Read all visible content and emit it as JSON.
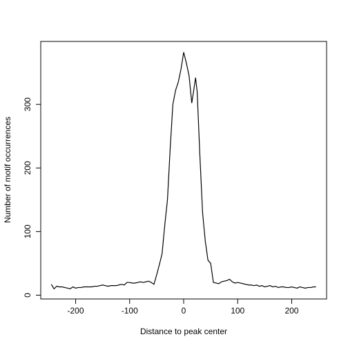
{
  "chart_data": {
    "type": "line",
    "xlabel": "Distance to peak center",
    "ylabel": "Number of motif occurrences",
    "x": [
      -245,
      -240,
      -235,
      -230,
      -225,
      -220,
      -215,
      -210,
      -205,
      -200,
      -195,
      -190,
      -185,
      -180,
      -175,
      -170,
      -165,
      -160,
      -155,
      -150,
      -145,
      -140,
      -135,
      -130,
      -125,
      -120,
      -115,
      -110,
      -105,
      -100,
      -95,
      -90,
      -85,
      -80,
      -75,
      -70,
      -65,
      -60,
      -55,
      -50,
      -45,
      -40,
      -35,
      -30,
      -25,
      -20,
      -15,
      -10,
      -5,
      0,
      5,
      10,
      15,
      20,
      22,
      25,
      30,
      35,
      40,
      45,
      50,
      55,
      60,
      65,
      70,
      75,
      80,
      85,
      90,
      95,
      100,
      105,
      110,
      115,
      120,
      125,
      130,
      135,
      140,
      145,
      150,
      155,
      160,
      165,
      170,
      175,
      180,
      185,
      190,
      195,
      200,
      205,
      210,
      215,
      220,
      225,
      230,
      235,
      240,
      245
    ],
    "series": [
      {
        "color": "#000000",
        "values": [
          17,
          10,
          14,
          13,
          13,
          12,
          11,
          10,
          13,
          11,
          12,
          12,
          13,
          13,
          13,
          13,
          14,
          14,
          15,
          16,
          15,
          14,
          15,
          15,
          15,
          16,
          17,
          16,
          20,
          20,
          19,
          19,
          20,
          21,
          20,
          21,
          22,
          20,
          17,
          32,
          48,
          65,
          110,
          150,
          230,
          300,
          322,
          335,
          355,
          382,
          365,
          345,
          302,
          330,
          342,
          320,
          220,
          130,
          85,
          55,
          50,
          20,
          19,
          18,
          21,
          22,
          23,
          25,
          21,
          19,
          20,
          19,
          18,
          17,
          16,
          16,
          15,
          16,
          14,
          15,
          13,
          14,
          15,
          13,
          14,
          12,
          13,
          13,
          12,
          12,
          13,
          12,
          11,
          13,
          12,
          11,
          12,
          12,
          13,
          13
        ]
      }
    ],
    "xlim": [
      -264.6,
      264.6
    ],
    "ylim": [
      -6,
      399
    ],
    "xticks": [
      -200,
      -100,
      0,
      100,
      200
    ],
    "yticks": [
      0,
      100,
      200,
      300
    ]
  }
}
